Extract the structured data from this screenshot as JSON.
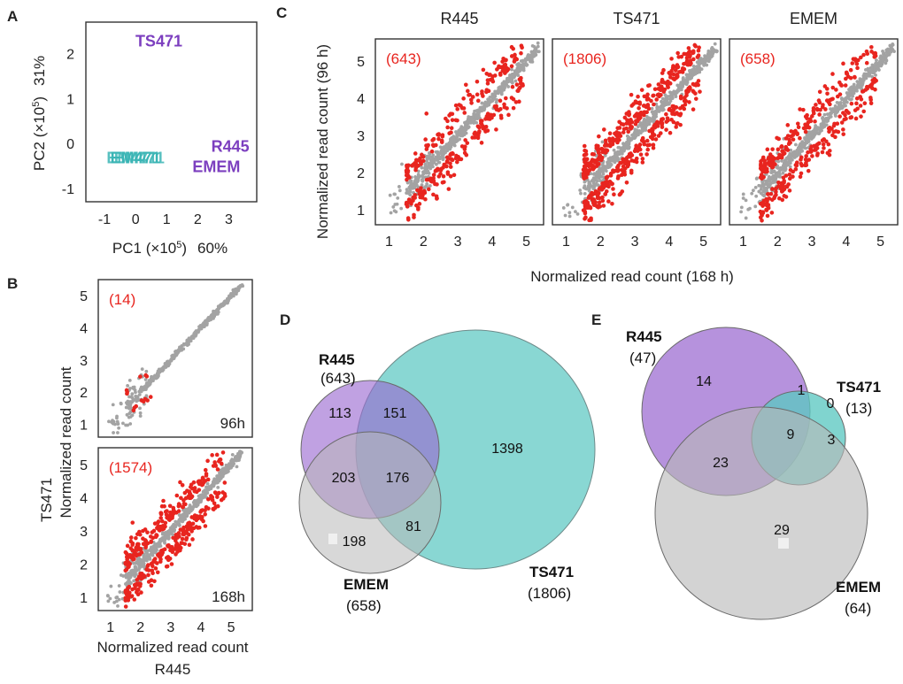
{
  "chart_data": [
    {
      "id": "A",
      "type": "scatter",
      "panel_label": "A",
      "xlabel_prefix": "PC1",
      "ylabel_prefix": "PC2",
      "xlabel_unit": "(×10",
      "xlabel_exp": "5",
      "xlabel_close": ")",
      "xlabel_pct": "60%",
      "ylabel_pct": "31%",
      "xticks": [
        "-1",
        "0",
        "1",
        "2",
        "3"
      ],
      "yticks": [
        "2",
        "1",
        "0",
        "-1"
      ],
      "xlim": [
        -1.6,
        3.9
      ],
      "ylim": [
        -1.3,
        2.7
      ],
      "colors": {
        "teal": "#3bb5b5",
        "purple": "#7c3fbf"
      },
      "points": [
        {
          "label": "TS471",
          "x": 0.75,
          "y": 2.3,
          "color": "purple"
        },
        {
          "label": "R445",
          "x": 3.05,
          "y": -0.05,
          "color": "purple"
        },
        {
          "label": "EMEM",
          "x": 2.6,
          "y": -0.5,
          "color": "purple"
        },
        {
          "label": "EM471",
          "x": 0.0,
          "y": -0.3,
          "color": "teal"
        }
      ]
    },
    {
      "id": "B",
      "type": "scatter",
      "panel_label": "B",
      "ylabel_outer": "TS471",
      "ylabel": "Normalized read count",
      "xlabel": "Normalized read count",
      "xlabel_sub": "R445",
      "xticks": [
        "1",
        "2",
        "3",
        "4",
        "5"
      ],
      "yticks": [
        "1",
        "2",
        "3",
        "4",
        "5"
      ],
      "xlim": [
        0.6,
        5.7
      ],
      "ylim": [
        0.6,
        5.5
      ],
      "subplots": [
        {
          "count_label": "(14)",
          "time_label": "96h",
          "de_count": 14
        },
        {
          "count_label": "(1574)",
          "time_label": "168h",
          "de_count": 1574
        }
      ]
    },
    {
      "id": "C",
      "type": "scatter",
      "panel_label": "C",
      "ylabel": "Normalized read count (96 h)",
      "xlabel": "Normalized read count (168 h)",
      "xticks": [
        "1",
        "2",
        "3",
        "4",
        "5"
      ],
      "yticks": [
        "1",
        "2",
        "3",
        "4",
        "5"
      ],
      "xlim": [
        0.6,
        5.5
      ],
      "ylim": [
        0.6,
        5.6
      ],
      "subplots": [
        {
          "title": "R445",
          "count_label": "(643)",
          "de_count": 643
        },
        {
          "title": "TS471",
          "count_label": "(1806)",
          "de_count": 1806
        },
        {
          "title": "EMEM",
          "count_label": "(658)",
          "de_count": 658
        }
      ]
    },
    {
      "id": "D",
      "type": "venn",
      "panel_label": "D",
      "sets": [
        {
          "name": "R445",
          "total": "(643)",
          "color": "#9a68d0"
        },
        {
          "name": "TS471",
          "total": "(1806)",
          "color": "#5cc8c2"
        },
        {
          "name": "EMEM",
          "total": "(658)",
          "color": "#bdbdbd"
        }
      ],
      "regions": [
        {
          "sets": [
            "R445"
          ],
          "value": "113"
        },
        {
          "sets": [
            "R445",
            "TS471"
          ],
          "value": "151"
        },
        {
          "sets": [
            "TS471"
          ],
          "value": "1398"
        },
        {
          "sets": [
            "R445",
            "EMEM"
          ],
          "value": "203"
        },
        {
          "sets": [
            "R445",
            "TS471",
            "EMEM"
          ],
          "value": "176"
        },
        {
          "sets": [
            "EMEM"
          ],
          "value": "198"
        },
        {
          "sets": [
            "TS471",
            "EMEM"
          ],
          "value": "81"
        }
      ]
    },
    {
      "id": "E",
      "type": "venn",
      "panel_label": "E",
      "sets": [
        {
          "name": "R445",
          "total": "(47)",
          "color": "#9a68d0"
        },
        {
          "name": "TS471",
          "total": "(13)",
          "color": "#5cc8c2"
        },
        {
          "name": "EMEM",
          "total": "(64)",
          "color": "#bdbdbd"
        }
      ],
      "regions": [
        {
          "sets": [
            "R445"
          ],
          "value": "14"
        },
        {
          "sets": [
            "R445",
            "TS471"
          ],
          "value": "1"
        },
        {
          "sets": [
            "TS471"
          ],
          "value": "0"
        },
        {
          "sets": [
            "R445",
            "TS471",
            "EMEM"
          ],
          "value": "9"
        },
        {
          "sets": [
            "TS471",
            "EMEM"
          ],
          "value": "3"
        },
        {
          "sets": [
            "R445",
            "EMEM"
          ],
          "value": "23"
        },
        {
          "sets": [
            "EMEM"
          ],
          "value": "29"
        }
      ]
    }
  ]
}
